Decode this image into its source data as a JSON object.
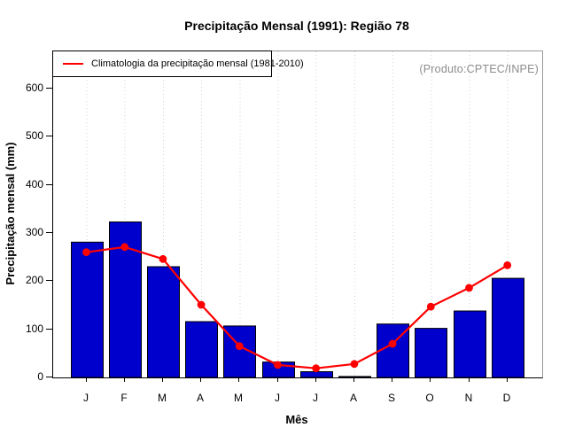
{
  "title": "Precipitação Mensal (1991): Região 78",
  "annotation": "(Produto:CPTEC/INPE)",
  "colors": {
    "bar_fill": "#0000CD",
    "bar_border": "#000000",
    "line": "#FF0000",
    "grid": "#D3D3D3",
    "box_border": "#999999",
    "axis": "#000000",
    "annotation_text": "#8C8C8C"
  },
  "chart_data": {
    "type": "bar",
    "title": "Precipitação Mensal (1991): Região 78",
    "categories": [
      "J",
      "F",
      "M",
      "A",
      "M",
      "J",
      "J",
      "A",
      "S",
      "O",
      "N",
      "D"
    ],
    "series": [
      {
        "name": "Precipitação mensal (1991)",
        "kind": "bar",
        "values": [
          281,
          323,
          230,
          116,
          107,
          32,
          12,
          2,
          111,
          102,
          138,
          206
        ]
      },
      {
        "name": "Climatologia da precipitação mensal (1981-2010)",
        "kind": "line",
        "values": [
          260,
          271,
          246,
          151,
          65,
          26,
          19,
          28,
          70,
          147,
          186,
          233
        ]
      }
    ],
    "xlabel": "Mês",
    "ylabel": "Precipitação mensal (mm)",
    "ylim": [
      0,
      600
    ],
    "y_ticks": [
      0,
      100,
      200,
      300,
      400,
      500,
      600
    ],
    "grid": "vertical-dotted",
    "legend_position": "top-left"
  }
}
